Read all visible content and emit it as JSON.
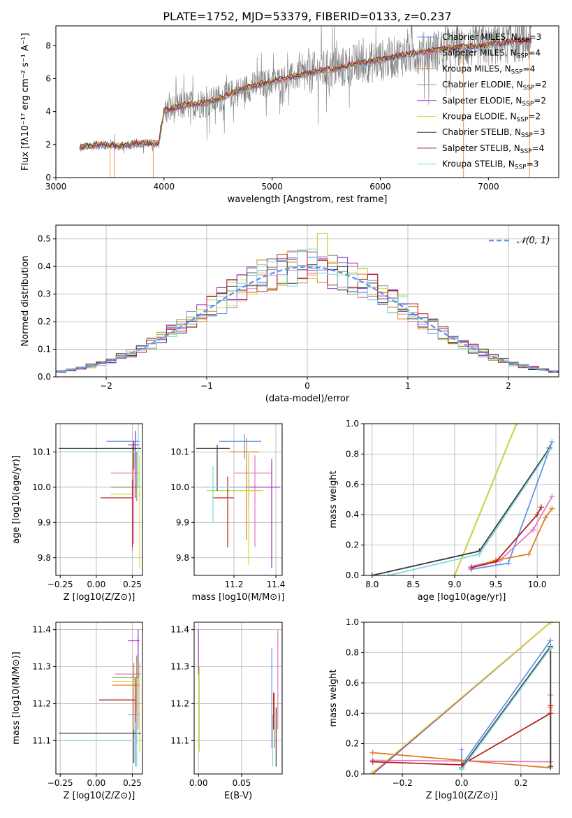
{
  "title": "PLATE=1752, MJD=53379, FIBERID=0133, z=0.237",
  "colors": {
    "chabrier_miles": "#6495ed",
    "salpeter_miles": "#e377c2",
    "kroupa_miles": "#e07b22",
    "chabrier_elodie": "#7aa55b",
    "salpeter_elodie": "#9932cc",
    "kroupa_elodie": "#d4dc38",
    "chabrier_stelib": "#3a3a3a",
    "salpeter_stelib": "#b22222",
    "kroupa_stelib": "#7fd6dd",
    "data": "#808080"
  },
  "chart_data": [
    {
      "id": "spectrum",
      "type": "line",
      "xlabel": "wavelength [Angstrom, rest frame]",
      "ylabel": "Flux [fλ10⁻¹⁷ erg cm⁻² s⁻¹ A⁻¹]",
      "xlim": [
        3000,
        7650
      ],
      "ylim": [
        0,
        9.2
      ],
      "xticks": [
        3000,
        4000,
        5000,
        6000,
        7000
      ],
      "yticks": [
        0,
        2,
        4,
        6,
        8
      ],
      "legend": [
        {
          "label": "Chabrier MILES, N",
          "sub": "SSP",
          "tail": "=3",
          "color": "chabrier_miles"
        },
        {
          "label": "Salpeter MILES, N",
          "sub": "SSP",
          "tail": "=4",
          "color": "salpeter_miles"
        },
        {
          "label": "Kroupa MILES, N",
          "sub": "SSP",
          "tail": "=4",
          "color": "kroupa_miles"
        },
        {
          "label": "Chabrier ELODIE, N",
          "sub": "SSP",
          "tail": "=2",
          "color": "chabrier_elodie"
        },
        {
          "label": "Salpeter ELODIE, N",
          "sub": "SSP",
          "tail": "=2",
          "color": "salpeter_elodie"
        },
        {
          "label": "Kroupa ELODIE, N",
          "sub": "SSP",
          "tail": "=2",
          "color": "kroupa_elodie"
        },
        {
          "label": "Chabrier STELIB, N",
          "sub": "SSP",
          "tail": "=3",
          "color": "chabrier_stelib"
        },
        {
          "label": "Salpeter STELIB, N",
          "sub": "SSP",
          "tail": "=4",
          "color": "salpeter_stelib"
        },
        {
          "label": "Kroupa STELIB, N",
          "sub": "SSP",
          "tail": "=3",
          "color": "kroupa_stelib"
        }
      ],
      "legend_position": "upper-right",
      "model_continuum": [
        [
          3220,
          1.8
        ],
        [
          3400,
          2.0
        ],
        [
          3600,
          1.9
        ],
        [
          3800,
          2.1
        ],
        [
          3950,
          2.0
        ],
        [
          4000,
          4.0
        ],
        [
          4200,
          4.4
        ],
        [
          4400,
          4.5
        ],
        [
          4600,
          5.0
        ],
        [
          4800,
          5.5
        ],
        [
          5000,
          5.8
        ],
        [
          5200,
          6.1
        ],
        [
          5400,
          6.4
        ],
        [
          5600,
          6.6
        ],
        [
          5800,
          6.9
        ],
        [
          6000,
          7.1
        ],
        [
          6200,
          7.4
        ],
        [
          6400,
          7.6
        ],
        [
          6600,
          7.8
        ],
        [
          6800,
          7.9
        ],
        [
          7000,
          8.0
        ],
        [
          7200,
          8.2
        ],
        [
          7400,
          8.3
        ]
      ]
    },
    {
      "id": "residuals",
      "type": "step",
      "xlabel": "(data-model)/error",
      "ylabel": "Normed distribution",
      "xlim": [
        -2.5,
        2.5
      ],
      "ylim": [
        0,
        0.55
      ],
      "xticks": [
        -2,
        -1,
        0,
        1,
        2
      ],
      "yticks": [
        0.0,
        0.1,
        0.2,
        0.3,
        0.4,
        0.5
      ],
      "grid": true,
      "legend": [
        {
          "label": "𝒩(0, 1)",
          "color": "chabrier_miles"
        }
      ],
      "legend_position": "upper-right",
      "gaussian": {
        "mu": 0,
        "sigma": 1
      }
    },
    {
      "id": "age_vs_Z",
      "type": "errorbar",
      "xlabel": "Z [log10(Z/Z⊙)]",
      "ylabel": "age [log10(age/yr)]",
      "xlim": [
        -0.28,
        0.32
      ],
      "ylim": [
        9.75,
        10.18
      ],
      "xticks": [
        -0.25,
        0.0,
        0.25
      ],
      "yticks": [
        9.8,
        9.9,
        10.0,
        10.1
      ],
      "grid": true,
      "points": [
        {
          "color": "chabrier_miles",
          "x": 0.27,
          "y": 10.13,
          "xerr": [
            0.2,
            0.03
          ],
          "yerr": [
            0.06,
            0.02
          ]
        },
        {
          "color": "salpeter_miles",
          "x": 0.26,
          "y": 10.04,
          "xerr": [
            0.16,
            0.04
          ],
          "yerr": [
            0.2,
            0.06
          ]
        },
        {
          "color": "kroupa_miles",
          "x": 0.25,
          "y": 10.0,
          "xerr": [
            0.15,
            0.05
          ],
          "yerr": [
            0.18,
            0.12
          ]
        },
        {
          "color": "chabrier_elodie",
          "x": 0.28,
          "y": 10.0,
          "xerr": [
            0.17,
            0.02
          ],
          "yerr": [
            0.04,
            0.1
          ]
        },
        {
          "color": "salpeter_elodie",
          "x": 0.27,
          "y": 10.12,
          "xerr": [
            0.05,
            0.03
          ],
          "yerr": [
            0.15,
            0.04
          ]
        },
        {
          "color": "kroupa_elodie",
          "x": 0.3,
          "y": 9.98,
          "xerr": [
            0.2,
            0.0
          ],
          "yerr": [
            0.21,
            0.11
          ]
        },
        {
          "color": "chabrier_stelib",
          "x": 0.26,
          "y": 10.11,
          "xerr": [
            0.52,
            0.05
          ],
          "yerr": [
            0.06,
            0.02
          ]
        },
        {
          "color": "salpeter_stelib",
          "x": 0.25,
          "y": 9.97,
          "xerr": [
            0.22,
            0.0
          ],
          "yerr": [
            0.14,
            0.05
          ]
        },
        {
          "color": "kroupa_stelib",
          "x": 0.29,
          "y": 10.1,
          "xerr": [
            0.55,
            0.0
          ],
          "yerr": [
            0.1,
            0.08
          ]
        }
      ]
    },
    {
      "id": "age_vs_mass",
      "type": "errorbar",
      "xlabel": "mass [log10(M/M⊙)]",
      "xlim": [
        11.01,
        11.43
      ],
      "ylim": [
        9.75,
        10.18
      ],
      "xticks": [
        11.2,
        11.4
      ],
      "yticks": [
        9.8,
        9.9,
        10.0,
        10.1
      ],
      "grid": true,
      "points": [
        {
          "color": "chabrier_miles",
          "x": 11.25,
          "y": 10.13,
          "xerr": [
            0.12,
            0.08
          ],
          "yerr": [
            0.05,
            0.02
          ]
        },
        {
          "color": "salpeter_miles",
          "x": 11.3,
          "y": 10.04,
          "xerr": [
            0.1,
            0.08
          ],
          "yerr": [
            0.21,
            0.05
          ]
        },
        {
          "color": "kroupa_miles",
          "x": 11.26,
          "y": 10.1,
          "xerr": [
            0.08,
            0.06
          ],
          "yerr": [
            0.25,
            0.04
          ]
        },
        {
          "color": "chabrier_elodie",
          "x": 11.27,
          "y": 9.99,
          "xerr": [
            0.2,
            0.07
          ],
          "yerr": [
            0.05,
            0.1
          ]
        },
        {
          "color": "salpeter_elodie",
          "x": 11.38,
          "y": 10.0,
          "xerr": [
            0.2,
            0.04
          ],
          "yerr": [
            0.23,
            0.08
          ]
        },
        {
          "color": "kroupa_elodie",
          "x": 11.27,
          "y": 9.99,
          "xerr": [
            0.2,
            0.07
          ],
          "yerr": [
            0.21,
            0.11
          ]
        },
        {
          "color": "chabrier_stelib",
          "x": 11.12,
          "y": 10.11,
          "xerr": [
            0.1,
            0.06
          ],
          "yerr": [
            0.12,
            0.01
          ]
        },
        {
          "color": "salpeter_stelib",
          "x": 11.17,
          "y": 9.97,
          "xerr": [
            0.07,
            0.03
          ],
          "yerr": [
            0.14,
            0.06
          ]
        },
        {
          "color": "kroupa_stelib",
          "x": 11.1,
          "y": 10.0,
          "xerr": [
            0.05,
            0.16
          ],
          "yerr": [
            0.1,
            0.06
          ]
        }
      ]
    },
    {
      "id": "massweight_vs_age",
      "type": "line",
      "xlabel": "age [log10(age/yr)]",
      "ylabel": "mass weight",
      "xlim": [
        7.9,
        10.27
      ],
      "ylim": [
        0,
        1.0
      ],
      "xticks": [
        8.0,
        8.5,
        9.0,
        9.5,
        10.0
      ],
      "yticks": [
        0.0,
        0.2,
        0.4,
        0.6,
        0.8,
        1.0
      ],
      "grid": true,
      "series": [
        {
          "color": "chabrier_miles",
          "x": [
            9.2,
            9.65,
            10.18
          ],
          "y": [
            0.04,
            0.08,
            0.88
          ]
        },
        {
          "color": "salpeter_miles",
          "x": [
            9.2,
            9.55,
            9.95,
            10.18
          ],
          "y": [
            0.06,
            0.1,
            0.3,
            0.52
          ]
        },
        {
          "color": "kroupa_miles",
          "x": [
            9.2,
            9.5,
            9.9,
            10.1,
            10.18
          ],
          "y": [
            0.05,
            0.1,
            0.14,
            0.38,
            0.44
          ]
        },
        {
          "color": "chabrier_elodie",
          "x": [
            9.0,
            9.75
          ],
          "y": [
            0.0,
            1.0
          ]
        },
        {
          "color": "salpeter_elodie",
          "x": [
            9.0,
            9.75
          ],
          "y": [
            0.0,
            1.0
          ]
        },
        {
          "color": "kroupa_elodie",
          "x": [
            9.0,
            9.75
          ],
          "y": [
            0.0,
            1.0
          ]
        },
        {
          "color": "chabrier_stelib",
          "x": [
            8.0,
            9.3,
            10.15
          ],
          "y": [
            0.0,
            0.16,
            0.84
          ]
        },
        {
          "color": "salpeter_stelib",
          "x": [
            9.2,
            9.5,
            10.0,
            10.05
          ],
          "y": [
            0.05,
            0.09,
            0.4,
            0.45
          ]
        },
        {
          "color": "kroupa_stelib",
          "x": [
            8.2,
            9.3,
            10.15
          ],
          "y": [
            0.0,
            0.14,
            0.83
          ]
        }
      ]
    },
    {
      "id": "mass_vs_Z",
      "type": "errorbar",
      "xlabel": "Z [log10(Z/Z⊙)]",
      "ylabel": "mass [log10(M/M⊙)]",
      "xlim": [
        -0.28,
        0.32
      ],
      "ylim": [
        11.01,
        11.42
      ],
      "xticks": [
        -0.25,
        0.0,
        0.25
      ],
      "yticks": [
        11.1,
        11.2,
        11.3,
        11.4
      ],
      "grid": true,
      "points": [
        {
          "color": "chabrier_miles",
          "x": 0.27,
          "y": 11.17,
          "xerr": [
            0.05,
            0.03
          ],
          "yerr": [
            0.14,
            0.05
          ]
        },
        {
          "color": "salpeter_miles",
          "x": 0.29,
          "y": 11.28,
          "xerr": [
            0.16,
            0.02
          ],
          "yerr": [
            0.15,
            0.1
          ]
        },
        {
          "color": "kroupa_miles",
          "x": 0.26,
          "y": 11.25,
          "xerr": [
            0.15,
            0.04
          ],
          "yerr": [
            0.14,
            0.06
          ]
        },
        {
          "color": "chabrier_elodie",
          "x": 0.28,
          "y": 11.27,
          "xerr": [
            0.17,
            0.02
          ],
          "yerr": [
            0.18,
            0.06
          ]
        },
        {
          "color": "salpeter_elodie",
          "x": 0.29,
          "y": 11.37,
          "xerr": [
            0.07,
            0.01
          ],
          "yerr": [
            0.1,
            0.03
          ]
        },
        {
          "color": "kroupa_elodie",
          "x": 0.3,
          "y": 11.26,
          "xerr": [
            0.19,
            0.0
          ],
          "yerr": [
            0.19,
            0.05
          ]
        },
        {
          "color": "chabrier_stelib",
          "x": 0.26,
          "y": 11.12,
          "xerr": [
            0.52,
            0.05
          ],
          "yerr": [
            0.08,
            0.01
          ]
        },
        {
          "color": "salpeter_stelib",
          "x": 0.27,
          "y": 11.21,
          "xerr": [
            0.25,
            0.0
          ],
          "yerr": [
            0.06,
            0.06
          ]
        },
        {
          "color": "kroupa_stelib",
          "x": 0.28,
          "y": 11.1,
          "xerr": [
            0.55,
            0.0
          ],
          "yerr": [
            0.07,
            0.08
          ]
        }
      ]
    },
    {
      "id": "mass_vs_ebv",
      "type": "errorbar",
      "xlabel": "E(B-V)",
      "xlim": [
        -0.005,
        0.097
      ],
      "ylim": [
        11.01,
        11.42
      ],
      "xticks": [
        0.0,
        0.05
      ],
      "yticks": [
        11.1,
        11.2,
        11.3,
        11.4
      ],
      "grid": true,
      "points": [
        {
          "color": "chabrier_miles",
          "x": 0.085,
          "y": 11.25,
          "xerr": [
            0,
            0
          ],
          "yerr": [
            0.17,
            0.1
          ]
        },
        {
          "color": "salpeter_miles",
          "x": 0.092,
          "y": 11.27,
          "xerr": [
            0,
            0
          ],
          "yerr": [
            0.14,
            0.13
          ]
        },
        {
          "color": "kroupa_miles",
          "x": 0.088,
          "y": 11.18,
          "xerr": [
            0,
            0
          ],
          "yerr": [
            0.1,
            0.05
          ]
        },
        {
          "color": "chabrier_elodie",
          "x": 0.001,
          "y": 11.2,
          "xerr": [
            0,
            0
          ],
          "yerr": [
            0.12,
            0.1
          ]
        },
        {
          "color": "salpeter_elodie",
          "x": 0.0,
          "y": 11.33,
          "xerr": [
            0,
            0
          ],
          "yerr": [
            0.05,
            0.07
          ]
        },
        {
          "color": "kroupa_elodie",
          "x": 0.001,
          "y": 11.18,
          "xerr": [
            0,
            0
          ],
          "yerr": [
            0.11,
            0.12
          ]
        },
        {
          "color": "chabrier_stelib",
          "x": 0.09,
          "y": 11.1,
          "xerr": [
            0,
            0
          ],
          "yerr": [
            0.07,
            0.09
          ]
        },
        {
          "color": "salpeter_stelib",
          "x": 0.087,
          "y": 11.19,
          "xerr": [
            0,
            0
          ],
          "yerr": [
            0.06,
            0.04
          ]
        },
        {
          "color": "kroupa_stelib",
          "x": 0.086,
          "y": 11.12,
          "xerr": [
            0,
            0
          ],
          "yerr": [
            0.09,
            0.05
          ]
        }
      ]
    },
    {
      "id": "massweight_vs_Z",
      "type": "line",
      "xlabel": "Z [log10(Z/Z⊙)]",
      "ylabel": "mass weight",
      "xlim": [
        -0.33,
        0.33
      ],
      "ylim": [
        0,
        1.0
      ],
      "xticks": [
        -0.2,
        0.0,
        0.2
      ],
      "yticks": [
        0.0,
        0.2,
        0.4,
        0.6,
        0.8,
        1.0
      ],
      "grid": true,
      "series": [
        {
          "color": "chabrier_miles",
          "x": [
            0.0,
            0.0,
            0.3
          ],
          "y": [
            0.16,
            0.06,
            0.88
          ]
        },
        {
          "color": "salpeter_miles",
          "x": [
            -0.3,
            0.3,
            0.3
          ],
          "y": [
            0.09,
            0.08,
            0.52
          ]
        },
        {
          "color": "kroupa_miles",
          "x": [
            -0.3,
            0.0,
            0.3,
            0.3
          ],
          "y": [
            0.14,
            0.09,
            0.04,
            0.44
          ]
        },
        {
          "color": "chabrier_elodie",
          "x": [
            -0.3,
            0.3
          ],
          "y": [
            0.0,
            1.0
          ]
        },
        {
          "color": "salpeter_elodie",
          "x": [
            -0.3,
            0.3
          ],
          "y": [
            0.0,
            1.0
          ]
        },
        {
          "color": "kroupa_elodie",
          "x": [
            -0.3,
            0.3
          ],
          "y": [
            0.01,
            1.0
          ]
        },
        {
          "color": "chabrier_stelib",
          "x": [
            0.0,
            0.3,
            0.3
          ],
          "y": [
            0.04,
            0.84,
            0.05
          ]
        },
        {
          "color": "salpeter_stelib",
          "x": [
            -0.3,
            0.0,
            0.3,
            0.3
          ],
          "y": [
            0.08,
            0.06,
            0.4,
            0.45
          ]
        },
        {
          "color": "kroupa_stelib",
          "x": [
            0.0,
            0.3
          ],
          "y": [
            0.03,
            0.83
          ]
        }
      ]
    }
  ]
}
